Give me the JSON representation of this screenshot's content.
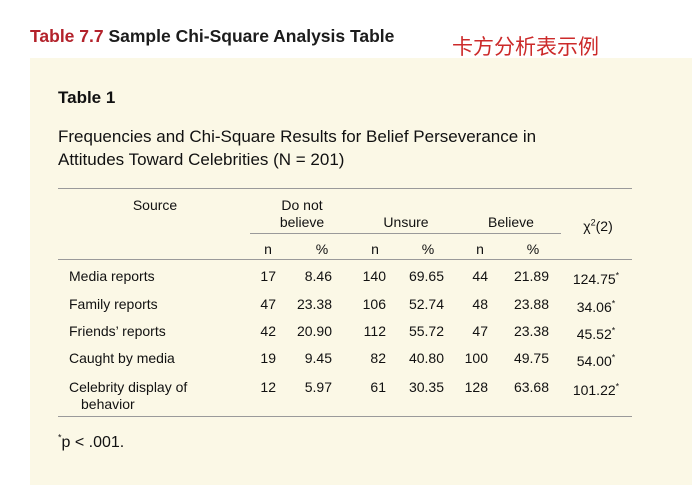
{
  "header": {
    "table_number": "Table 7.7",
    "title": " Sample Chi-Square Analysis Table",
    "chinese_title": "卡方分析表示例"
  },
  "table": {
    "label": "Table 1",
    "caption_line1": "Frequencies and Chi-Square Results for Belief Perseverance in",
    "caption_line2": "Attitudes Toward Celebrities (N = 201)",
    "columns": {
      "source": "Source",
      "do_not_believe_line1": "Do not",
      "do_not_believe_line2": "believe",
      "unsure": "Unsure",
      "believe": "Believe",
      "chi_symbol": "χ",
      "chi_sup": "2",
      "chi_df": "(2)",
      "n": "n",
      "pct": "%"
    },
    "rows": [
      {
        "source": "Media reports",
        "source2": "",
        "dnb_n": "17",
        "dnb_pct": "8.46",
        "uns_n": "140",
        "uns_pct": "69.65",
        "bel_n": "44",
        "bel_pct": "21.89",
        "chi": "124.75",
        "sig": "*"
      },
      {
        "source": "Family reports",
        "source2": "",
        "dnb_n": "47",
        "dnb_pct": "23.38",
        "uns_n": "106",
        "uns_pct": "52.74",
        "bel_n": "48",
        "bel_pct": "23.88",
        "chi": "34.06",
        "sig": "*"
      },
      {
        "source": "Friends’ reports",
        "source2": "",
        "dnb_n": "42",
        "dnb_pct": "20.90",
        "uns_n": "112",
        "uns_pct": "55.72",
        "bel_n": "47",
        "bel_pct": "23.38",
        "chi": "45.52",
        "sig": "*"
      },
      {
        "source": "Caught by media",
        "source2": "",
        "dnb_n": "19",
        "dnb_pct": "9.45",
        "uns_n": "82",
        "uns_pct": "40.80",
        "bel_n": "100",
        "bel_pct": "49.75",
        "chi": "54.00",
        "sig": "*"
      },
      {
        "source": "Celebrity display of",
        "source2": "behavior",
        "dnb_n": "12",
        "dnb_pct": "5.97",
        "uns_n": "61",
        "uns_pct": "30.35",
        "bel_n": "128",
        "bel_pct": "63.68",
        "chi": "101.22",
        "sig": "*"
      }
    ],
    "footnote_sup": "*",
    "footnote_text": "p < .001."
  }
}
